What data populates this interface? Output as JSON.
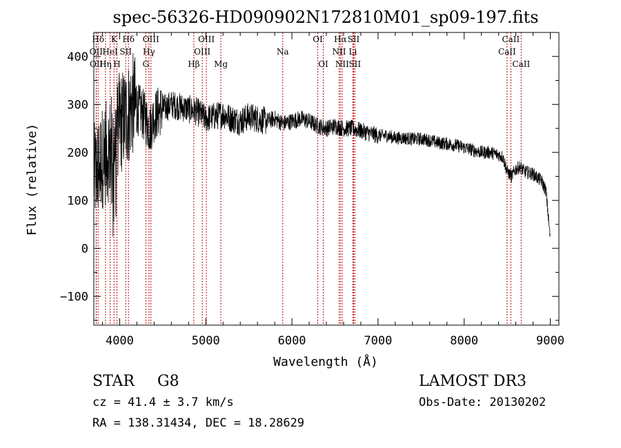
{
  "chart_data": {
    "type": "line",
    "title": "spec-56326-HD090902N172810M01_sp09-197.fits",
    "xlabel": "Wavelength (Å)",
    "ylabel": "Flux (relative)",
    "xlim": [
      3700,
      9100
    ],
    "ylim": [
      -160,
      450
    ],
    "x_ticks": [
      4000,
      5000,
      6000,
      7000,
      8000,
      9000
    ],
    "x_tick_labels": [
      "4000",
      "5000",
      "6000",
      "7000",
      "8000",
      "9000"
    ],
    "y_ticks": [
      -100,
      0,
      100,
      200,
      300,
      400
    ],
    "y_tick_labels": [
      "−100",
      "0",
      "100",
      "200",
      "300",
      "400"
    ],
    "series": [
      {
        "name": "spectrum",
        "color": "#000000",
        "x": [
          3700,
          3750,
          3800,
          3850,
          3900,
          3950,
          4000,
          4050,
          4100,
          4150,
          4200,
          4250,
          4300,
          4350,
          4400,
          4450,
          4500,
          4600,
          4700,
          4800,
          4900,
          5000,
          5100,
          5200,
          5300,
          5400,
          5500,
          5600,
          5700,
          5800,
          5900,
          6000,
          6100,
          6200,
          6300,
          6400,
          6500,
          6600,
          6700,
          6800,
          6900,
          7000,
          7100,
          7200,
          7300,
          7400,
          7500,
          7600,
          7700,
          7800,
          7900,
          8000,
          8100,
          8200,
          8300,
          8400,
          8450,
          8500,
          8550,
          8600,
          8650,
          8700,
          8800,
          8900,
          8950,
          9000
        ],
        "y": [
          150,
          170,
          190,
          200,
          210,
          240,
          260,
          270,
          280,
          300,
          290,
          285,
          270,
          250,
          275,
          285,
          290,
          300,
          295,
          290,
          285,
          270,
          275,
          280,
          270,
          265,
          275,
          270,
          265,
          270,
          260,
          265,
          270,
          265,
          255,
          250,
          255,
          250,
          250,
          245,
          240,
          235,
          235,
          230,
          230,
          228,
          228,
          225,
          220,
          218,
          215,
          210,
          205,
          200,
          200,
          195,
          190,
          160,
          150,
          165,
          170,
          160,
          155,
          140,
          120,
          20
        ]
      }
    ],
    "lines": [
      {
        "label": "Hδ",
        "x": 3750,
        "row": 0
      },
      {
        "label": "OII",
        "x": 3727,
        "row": 1
      },
      {
        "label": "OII",
        "x": 3729,
        "row": 2
      },
      {
        "label": "K",
        "x": 3934,
        "row": 0
      },
      {
        "label": "HeI",
        "x": 3889,
        "row": 1
      },
      {
        "label": "Hη",
        "x": 3835,
        "row": 2
      },
      {
        "label": "SII",
        "x": 4070,
        "row": 1
      },
      {
        "label": "H",
        "x": 3968,
        "row": 2
      },
      {
        "label": "Hδ",
        "x": 4102,
        "row": 0
      },
      {
        "label": "OIII",
        "x": 4363,
        "row": 0
      },
      {
        "label": "Hγ",
        "x": 4340,
        "row": 1
      },
      {
        "label": "G",
        "x": 4304,
        "row": 2
      },
      {
        "label": "Hβ",
        "x": 4861,
        "row": 2
      },
      {
        "label": "OIII",
        "x": 5007,
        "row": 0
      },
      {
        "label": "OIII",
        "x": 4959,
        "row": 1
      },
      {
        "label": "Mg",
        "x": 5175,
        "row": 2
      },
      {
        "label": "Na",
        "x": 5893,
        "row": 1
      },
      {
        "label": "OI",
        "x": 6300,
        "row": 0
      },
      {
        "label": "OI",
        "x": 6364,
        "row": 2
      },
      {
        "label": "Hα",
        "x": 6563,
        "row": 0
      },
      {
        "label": "SII",
        "x": 6716,
        "row": 0
      },
      {
        "label": "NII",
        "x": 6548,
        "row": 1
      },
      {
        "label": "Li",
        "x": 6708,
        "row": 1
      },
      {
        "label": "NII",
        "x": 6583,
        "row": 2
      },
      {
        "label": "SII",
        "x": 6731,
        "row": 2
      },
      {
        "label": "CaII",
        "x": 8542,
        "row": 0
      },
      {
        "label": "CaII",
        "x": 8498,
        "row": 1
      },
      {
        "label": "CaII",
        "x": 8662,
        "row": 2
      }
    ],
    "line_color": "#c00000"
  },
  "info": {
    "class": "STAR",
    "subclass": "G8",
    "survey": "LAMOST DR3",
    "cz": "cz = 41.4 ± 3.7 km/s",
    "obs_date": "Obs-Date: 20130202",
    "coords": "RA = 138.31434, DEC =  18.28629"
  }
}
